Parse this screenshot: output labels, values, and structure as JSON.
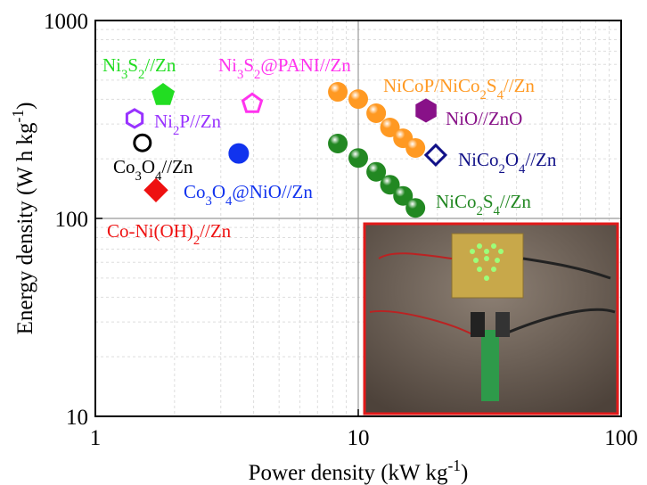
{
  "chart_data": {
    "type": "scatter",
    "x_label": "Power density (kW kg-1)",
    "y_label": "Energy density (W h kg-1)",
    "x_log": true,
    "y_log": true,
    "xlim": [
      1,
      100
    ],
    "ylim": [
      10,
      1000
    ],
    "xticks": [
      1,
      10,
      100
    ],
    "yticks": [
      10,
      100,
      1000
    ],
    "grid": true,
    "minor_grid": true,
    "series": [
      {
        "name": "Ni3S2//Zn",
        "color": "#22dd22",
        "marker": "pentagon",
        "filled": true,
        "x": [
          1.81
        ],
        "values": [
          420
        ]
      },
      {
        "name": "Ni3S2@PANI//Zn",
        "color": "#ff33ee",
        "marker": "pentagon",
        "filled": false,
        "x": [
          3.95
        ],
        "values": [
          380
        ]
      },
      {
        "name": "Ni2P//Zn",
        "color": "#9933ff",
        "marker": "hexagon",
        "filled": false,
        "x": [
          1.41
        ],
        "values": [
          320
        ]
      },
      {
        "name": "Co3O4//Zn",
        "color": "#000000",
        "marker": "circle",
        "filled": false,
        "x": [
          1.51
        ],
        "values": [
          241
        ]
      },
      {
        "name": "Co3O4@NiO//Zn",
        "color": "#1133ee",
        "marker": "circle",
        "filled": true,
        "x": [
          3.51
        ],
        "values": [
          213
        ]
      },
      {
        "name": "Co-Ni(OH)2//Zn",
        "color": "#ee1111",
        "marker": "diamond",
        "filled": true,
        "x": [
          1.7
        ],
        "values": [
          139
        ]
      },
      {
        "name": "NiCoP/NiCo2S4//Zn",
        "color": "#ff9922",
        "marker": "sphere",
        "filled": true,
        "x": [
          8.36,
          10.0,
          11.7,
          13.2,
          14.8,
          16.5
        ],
        "values": [
          436,
          401,
          340,
          288,
          254,
          227
        ]
      },
      {
        "name": "NiO//ZnO",
        "color": "#881188",
        "marker": "hexagon",
        "filled": true,
        "x": [
          18.1
        ],
        "values": [
          351
        ]
      },
      {
        "name": "NiCo2O4//Zn",
        "color": "#111188",
        "marker": "diamond",
        "filled": false,
        "x": [
          19.7
        ],
        "values": [
          209
        ]
      },
      {
        "name": "NiCo2S4//Zn",
        "color": "#228822",
        "marker": "sphere",
        "filled": true,
        "x": [
          8.36,
          10.0,
          11.7,
          13.2,
          14.8,
          16.5
        ],
        "values": [
          239,
          202,
          172,
          148,
          130,
          113
        ]
      }
    ]
  }
}
